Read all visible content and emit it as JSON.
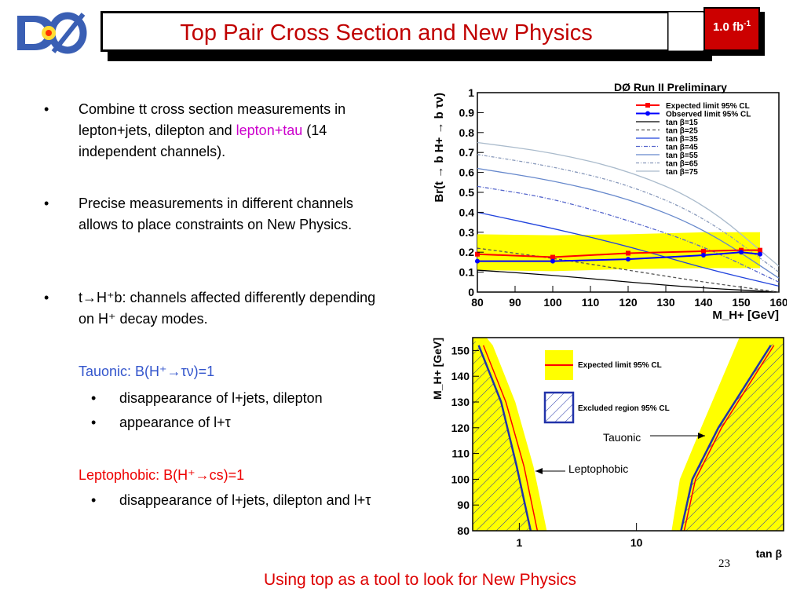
{
  "header": {
    "title": "Top Pair Cross Section and New Physics",
    "lumi_label": "1.0 fb",
    "lumi_exponent": "-1"
  },
  "bullets": {
    "b1_part1": "Combine tt cross section measurements in lepton+jets, dilepton and ",
    "b1_highlight": "lepton+tau",
    "b1_part2": " (14 independent channels).",
    "b2": "Precise measurements in different channels allows to place constraints on New Physics.",
    "b3_t": "t",
    "b3_arrow": "→",
    "b3_rest": "H⁺b: channels affected differently depending on H⁺ decay modes.",
    "tauonic_heading": "Tauonic: B(H⁺→τν)=1",
    "tauonic_items": [
      "disappearance of l+jets, dilepton",
      "appearance of l+τ"
    ],
    "leptophobic_heading": "Leptophobic: B(H⁺→cs)=1",
    "leptophobic_items": [
      "disappearance of l+jets, dilepton and l+τ"
    ]
  },
  "footer": {
    "text": "Using top as a tool to look for New Physics",
    "page_number": "23"
  },
  "chart_data": [
    {
      "type": "line",
      "title": "DØ Run II Preliminary",
      "xlabel": "M_H+ [GeV]",
      "ylabel": "Br(t → b H+ → b τν)",
      "xlim": [
        80,
        160
      ],
      "ylim": [
        0,
        1
      ],
      "xticks": [
        "80",
        "90",
        "100",
        "110",
        "120",
        "130",
        "140",
        "150",
        "160"
      ],
      "yticks": [
        "0",
        "0.1",
        "0.2",
        "0.3",
        "0.4",
        "0.5",
        "0.6",
        "0.7",
        "0.8",
        "0.9",
        "1"
      ],
      "legend_position": "top-right",
      "legend": [
        "Expected limit 95% CL",
        "Observed limit 95% CL",
        "tan β=15",
        "tan β=25",
        "tan β=35",
        "tan β=45",
        "tan β=55",
        "tan β=65",
        "tan β=75"
      ],
      "series": [
        {
          "name": "Expected limit 95% CL",
          "color": "#ff0000",
          "x": [
            80,
            100,
            120,
            140,
            150,
            155
          ],
          "y": [
            0.19,
            0.175,
            0.195,
            0.205,
            0.21,
            0.21
          ]
        },
        {
          "name": "Observed limit 95% CL",
          "color": "#0000ff",
          "x": [
            80,
            100,
            120,
            140,
            150,
            155
          ],
          "y": [
            0.155,
            0.155,
            0.165,
            0.185,
            0.2,
            0.19
          ]
        },
        {
          "name": "tan β=15",
          "color": "#000000",
          "x": [
            80,
            100,
            120,
            140,
            160
          ],
          "y": [
            0.11,
            0.085,
            0.05,
            0.02,
            0.0
          ]
        },
        {
          "name": "tan β=25",
          "color": "#555555",
          "x": [
            80,
            100,
            120,
            140,
            160
          ],
          "y": [
            0.22,
            0.17,
            0.11,
            0.05,
            0.0
          ]
        },
        {
          "name": "tan β=35",
          "color": "#2244dd",
          "x": [
            80,
            100,
            120,
            140,
            160
          ],
          "y": [
            0.4,
            0.32,
            0.23,
            0.12,
            0.03
          ]
        },
        {
          "name": "tan β=45",
          "color": "#5566cc",
          "x": [
            80,
            100,
            120,
            140,
            160
          ],
          "y": [
            0.53,
            0.47,
            0.36,
            0.23,
            0.05
          ]
        },
        {
          "name": "tan β=55",
          "color": "#6688cc",
          "x": [
            80,
            100,
            120,
            140,
            160
          ],
          "y": [
            0.62,
            0.56,
            0.47,
            0.32,
            0.07
          ]
        },
        {
          "name": "tan β=65",
          "color": "#8899bb",
          "x": [
            80,
            100,
            120,
            140,
            160
          ],
          "y": [
            0.69,
            0.63,
            0.54,
            0.38,
            0.1
          ]
        },
        {
          "name": "tan β=75",
          "color": "#aabbcc",
          "x": [
            80,
            100,
            120,
            140,
            160
          ],
          "y": [
            0.75,
            0.7,
            0.61,
            0.45,
            0.13
          ]
        }
      ],
      "expected_band": {
        "x": [
          80,
          100,
          120,
          140,
          155
        ],
        "y_low": [
          0.11,
          0.105,
          0.115,
          0.12,
          0.12
        ],
        "y_high": [
          0.29,
          0.285,
          0.29,
          0.3,
          0.3
        ]
      }
    },
    {
      "type": "line",
      "xlabel": "tan β",
      "ylabel": "M_H+ [GeV]",
      "xscale": "log",
      "xticks": [
        "1",
        "10"
      ],
      "ylim": [
        80,
        155
      ],
      "yticks": [
        "80",
        "90",
        "100",
        "110",
        "120",
        "130",
        "140",
        "150"
      ],
      "legend": [
        "Expected limit 95% CL",
        "Excluded region   95% CL"
      ],
      "annotations": [
        "Tauonic",
        "Leptophobic"
      ],
      "series": [
        {
          "name": "Expected limit 95% CL (low tan β)",
          "color": "#ff0000",
          "x": [
            0.45,
            0.7,
            1.0,
            1.3
          ],
          "y": [
            152,
            130,
            105,
            80
          ]
        },
        {
          "name": "Excluded region 95% CL (low tan β)",
          "color": "#2233aa",
          "x": [
            0.45,
            0.7,
            0.95,
            1.25
          ],
          "y": [
            152,
            130,
            105,
            80
          ]
        },
        {
          "name": "Expected limit 95% CL (high tan β)",
          "color": "#ff0000",
          "x": [
            24,
            30,
            50,
            140
          ],
          "y": [
            80,
            100,
            120,
            152
          ]
        },
        {
          "name": "Excluded region 95% CL (high tan β)",
          "color": "#2233aa",
          "x": [
            24,
            30,
            50,
            140
          ],
          "y": [
            80,
            100,
            120,
            152
          ]
        }
      ]
    }
  ],
  "chart2_text": {
    "legend_expected": "Expected limit 95% CL",
    "legend_excluded": "Excluded region   95% CL",
    "tauonic": "Tauonic",
    "leptophobic": "Leptophobic"
  }
}
